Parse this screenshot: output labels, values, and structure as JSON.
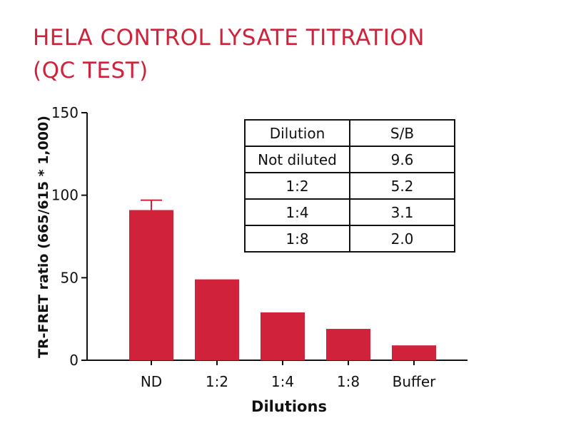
{
  "title": {
    "line1": "HELA CONTROL LYSATE TITRATION",
    "line2": "(QC TEST)"
  },
  "colors": {
    "title": "#d0223a",
    "bar": "#d0223a",
    "axis": "#111111"
  },
  "chart_data": {
    "type": "bar",
    "categories": [
      "ND",
      "1:2",
      "1:4",
      "1:8",
      "Buffer"
    ],
    "values": [
      91,
      49,
      29,
      19,
      9
    ],
    "error": [
      6,
      0,
      0,
      0,
      0
    ],
    "xlabel": "Dilutions",
    "ylabel": "TR-FRET ratio (665/615 * 1,000)",
    "ylim": [
      0,
      150
    ],
    "yticks": [
      0,
      50,
      100,
      150
    ],
    "grid": false,
    "legend": "none"
  },
  "sb_table": {
    "headers": [
      "Dilution",
      "S/B"
    ],
    "rows": [
      [
        "Not diluted",
        "9.6"
      ],
      [
        "1:2",
        "5.2"
      ],
      [
        "1:4",
        "3.1"
      ],
      [
        "1:8",
        "2.0"
      ]
    ]
  }
}
